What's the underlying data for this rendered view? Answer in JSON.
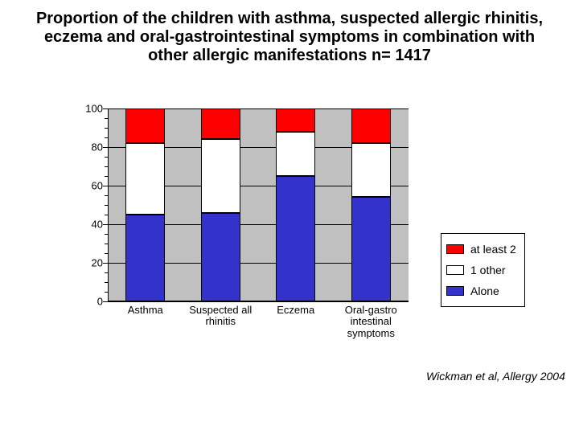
{
  "title": {
    "text": "Proportion of the children with asthma, suspected allergic rhinitis, eczema and oral-gastrointestinal symptoms in combination with other allergic manifestations  n= 1417",
    "fontsize": 20
  },
  "chart": {
    "type": "stacked-bar",
    "ylim": [
      0,
      100
    ],
    "ytick_step": 20,
    "minor_ticks": true,
    "background_color": "#ffffff",
    "plot_background": "#c0c0c0",
    "grid_color": "#000000",
    "axis_color": "#000000",
    "bar_width": 0.52,
    "categories": [
      "Asthma",
      "Suspected all rhinitis",
      "Eczema",
      "Oral-gastro intestinal symptoms"
    ],
    "series": [
      {
        "key": "alone",
        "label": "Alone",
        "color": "#3333cc",
        "values": [
          45,
          46,
          65,
          54
        ]
      },
      {
        "key": "one_other",
        "label": "1 other",
        "color": "#ffffff",
        "values": [
          37,
          38,
          23,
          28
        ]
      },
      {
        "key": "atleast2",
        "label": "at least 2",
        "color": "#ff0000",
        "values": [
          18,
          16,
          12,
          18
        ]
      }
    ],
    "label_fontsize": 13,
    "tick_fontsize": 13
  },
  "legend": {
    "items": [
      {
        "label": "at least 2",
        "color": "#ff0000"
      },
      {
        "label": "1 other",
        "color": "#ffffff"
      },
      {
        "label": "Alone",
        "color": "#3333cc"
      }
    ],
    "fontsize": 14
  },
  "citation": "Wickman et al, Allergy 2004"
}
